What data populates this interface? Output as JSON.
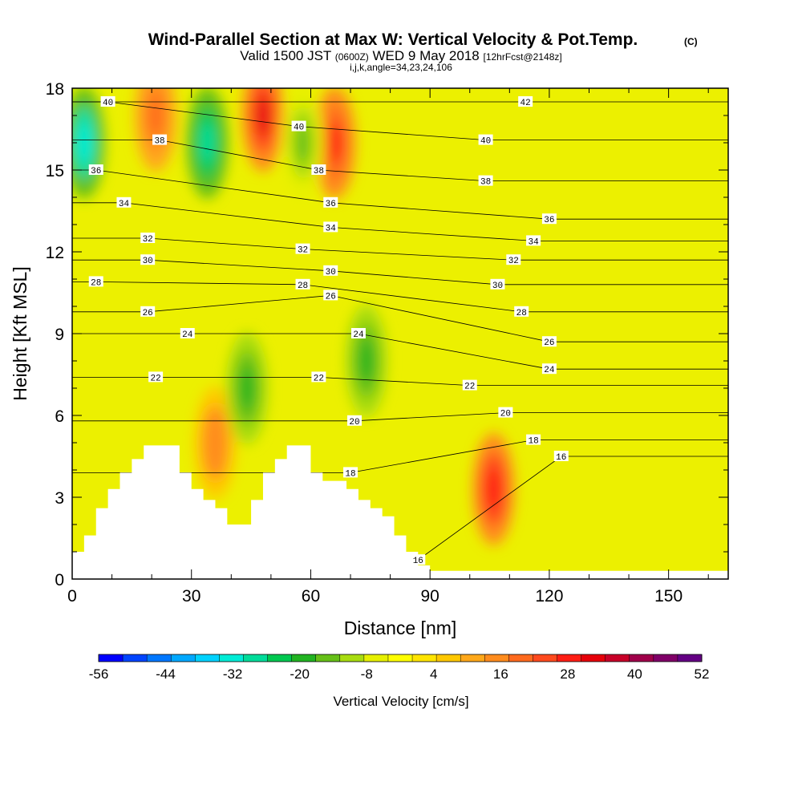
{
  "chart_data": {
    "type": "heatmap",
    "title": "Wind-Parallel Section at Max W: Vertical Velocity & Pot.Temp.",
    "title_suffix": "(C)",
    "subtitle_main": "Valid 1500 JST",
    "subtitle_z": "(0600Z)",
    "subtitle_date": "WED 9 May 2018",
    "subtitle_fcst": "[12hrFcst@2148z]",
    "subsubtitle": "i,j,k,angle=34,23,24,106",
    "xlabel": "Distance [nm]",
    "ylabel": "Height [Kft MSL]",
    "xlim": [
      0,
      165
    ],
    "ylim": [
      0,
      18
    ],
    "x_ticks": [
      "0",
      "30",
      "60",
      "90",
      "120",
      "150"
    ],
    "y_ticks": [
      "0",
      "3",
      "6",
      "9",
      "12",
      "15",
      "18"
    ],
    "colorbar": {
      "title": "Vertical Velocity [cm/s]",
      "labels": [
        "-56",
        "-44",
        "-32",
        "-20",
        "-8",
        "4",
        "16",
        "28",
        "40",
        "52"
      ],
      "colors": [
        "#0000ff",
        "#0044ff",
        "#0077ff",
        "#00a8ff",
        "#00d2ff",
        "#00ecd6",
        "#00dc9a",
        "#00c850",
        "#22b422",
        "#66c018",
        "#a8dc10",
        "#e6f000",
        "#ffff00",
        "#ffe400",
        "#ffc800",
        "#ffa81a",
        "#ff8c1e",
        "#ff6a1e",
        "#ff4a1e",
        "#ff1e14",
        "#e6000a",
        "#c80028",
        "#a0004a",
        "#800068",
        "#640084"
      ]
    },
    "terrain_profile": {
      "x": [
        0,
        3,
        6,
        9,
        12,
        15,
        18,
        21,
        24,
        27,
        30,
        33,
        36,
        39,
        42,
        45,
        48,
        51,
        54,
        57,
        60,
        63,
        66,
        69,
        72,
        75,
        78,
        81,
        84,
        87,
        90,
        165
      ],
      "y": [
        1.0,
        1.6,
        2.6,
        3.3,
        3.9,
        4.4,
        4.9,
        4.9,
        4.9,
        3.9,
        3.3,
        2.9,
        2.6,
        2.0,
        2.0,
        2.9,
        3.9,
        4.4,
        4.9,
        4.9,
        3.9,
        3.6,
        3.6,
        3.3,
        2.9,
        2.6,
        2.3,
        1.6,
        1.0,
        0.5,
        0.3,
        0.3
      ]
    },
    "updraft_maxima": [
      {
        "x": 106,
        "y": 3.3,
        "w": 30
      },
      {
        "x": 48,
        "y": 17,
        "w": 32
      },
      {
        "x": 66,
        "y": 16,
        "w": 28
      },
      {
        "x": 21,
        "y": 17,
        "w": 20
      },
      {
        "x": 36,
        "y": 5,
        "w": 18
      }
    ],
    "downdraft_minima": [
      {
        "x": 3,
        "y": 16,
        "w": -34
      },
      {
        "x": 34,
        "y": 16,
        "w": -28
      },
      {
        "x": 44,
        "y": 7,
        "w": -20
      },
      {
        "x": 74,
        "y": 8,
        "w": -18
      },
      {
        "x": 58,
        "y": 16,
        "w": -16
      }
    ],
    "theta_contour_labels": [
      {
        "text": "40",
        "x": 9,
        "y": 17.5
      },
      {
        "text": "38",
        "x": 22,
        "y": 16.1
      },
      {
        "text": "36",
        "x": 6,
        "y": 15.0
      },
      {
        "text": "34",
        "x": 13,
        "y": 13.8
      },
      {
        "text": "32",
        "x": 19,
        "y": 12.5
      },
      {
        "text": "30",
        "x": 19,
        "y": 11.7
      },
      {
        "text": "28",
        "x": 6,
        "y": 10.9
      },
      {
        "text": "26",
        "x": 19,
        "y": 9.8
      },
      {
        "text": "24",
        "x": 29,
        "y": 9.0
      },
      {
        "text": "22",
        "x": 21,
        "y": 7.4
      },
      {
        "text": "40",
        "x": 57,
        "y": 16.6
      },
      {
        "text": "38",
        "x": 62,
        "y": 15.0
      },
      {
        "text": "36",
        "x": 65,
        "y": 13.8
      },
      {
        "text": "34",
        "x": 65,
        "y": 12.9
      },
      {
        "text": "32",
        "x": 58,
        "y": 12.1
      },
      {
        "text": "30",
        "x": 65,
        "y": 11.3
      },
      {
        "text": "28",
        "x": 58,
        "y": 10.8
      },
      {
        "text": "26",
        "x": 65,
        "y": 10.4
      },
      {
        "text": "24",
        "x": 72,
        "y": 9.0
      },
      {
        "text": "22",
        "x": 62,
        "y": 7.4
      },
      {
        "text": "20",
        "x": 71,
        "y": 5.8
      },
      {
        "text": "18",
        "x": 70,
        "y": 3.9
      },
      {
        "text": "16",
        "x": 87,
        "y": 0.7
      },
      {
        "text": "42",
        "x": 114,
        "y": 17.5
      },
      {
        "text": "40",
        "x": 104,
        "y": 16.1
      },
      {
        "text": "38",
        "x": 104,
        "y": 14.6
      },
      {
        "text": "36",
        "x": 120,
        "y": 13.2
      },
      {
        "text": "34",
        "x": 116,
        "y": 12.4
      },
      {
        "text": "32",
        "x": 111,
        "y": 11.7
      },
      {
        "text": "30",
        "x": 107,
        "y": 10.8
      },
      {
        "text": "28",
        "x": 113,
        "y": 9.8
      },
      {
        "text": "26",
        "x": 120,
        "y": 8.7
      },
      {
        "text": "24",
        "x": 120,
        "y": 7.7
      },
      {
        "text": "22",
        "x": 100,
        "y": 7.1
      },
      {
        "text": "20",
        "x": 109,
        "y": 6.1
      },
      {
        "text": "18",
        "x": 116,
        "y": 5.1
      },
      {
        "text": "16",
        "x": 123,
        "y": 4.5
      }
    ]
  }
}
